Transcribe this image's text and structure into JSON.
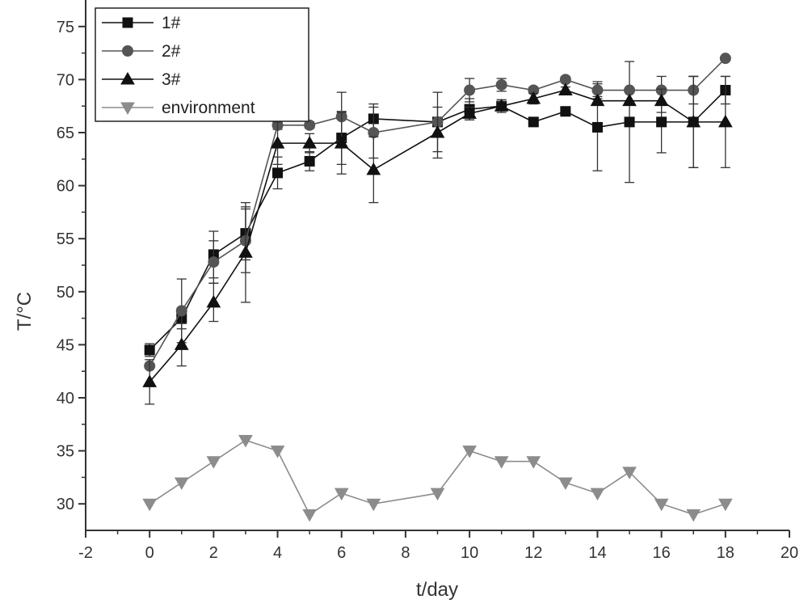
{
  "chart_data": {
    "type": "line",
    "title": "",
    "xlabel": "t/day",
    "ylabel": "T/°C",
    "xlim": [
      -2,
      20
    ],
    "ylim": [
      27.5,
      77.5
    ],
    "xticks": [
      -2,
      0,
      2,
      4,
      6,
      8,
      10,
      12,
      14,
      16,
      18,
      20
    ],
    "yticks": [
      30,
      35,
      40,
      45,
      50,
      55,
      60,
      65,
      70,
      75
    ],
    "grid": false,
    "legend_position": "top-left",
    "series": [
      {
        "name": "1#",
        "marker": "square",
        "color": "#111111",
        "x": [
          0,
          1,
          2,
          3,
          4,
          5,
          6,
          7,
          9,
          10,
          11,
          12,
          13,
          14,
          15,
          16,
          17,
          18
        ],
        "y": [
          44.5,
          47.5,
          53.5,
          55.5,
          61.2,
          62.3,
          64.5,
          66.3,
          66,
          67.2,
          67.5,
          66,
          67,
          65.5,
          66,
          66,
          66,
          69
        ],
        "err": [
          0.6,
          1.0,
          2.2,
          2.5,
          1.5,
          0.9,
          2.5,
          1.4,
          2.8,
          1.0,
          0.6,
          0,
          0,
          4.1,
          5.7,
          2.9,
          4.3,
          1.3
        ]
      },
      {
        "name": "2#",
        "marker": "circle",
        "color": "#555555",
        "x": [
          0,
          1,
          2,
          3,
          4,
          5,
          6,
          7,
          9,
          10,
          11,
          12,
          13,
          14,
          15,
          16,
          17,
          18
        ],
        "y": [
          43,
          48.2,
          52.8,
          54.8,
          65.7,
          65.7,
          66.5,
          65,
          66,
          69,
          69.5,
          69,
          70,
          69,
          69,
          69,
          69,
          72
        ],
        "err": [
          0,
          3.0,
          2.0,
          3.0,
          0.4,
          0.3,
          2.3,
          2.4,
          0,
          1.1,
          0.6,
          0.3,
          0.3,
          0.8,
          0,
          1.3,
          1.3,
          0
        ]
      },
      {
        "name": "3#",
        "marker": "triangle-up",
        "color": "#111111",
        "x": [
          0,
          1,
          2,
          3,
          4,
          5,
          6,
          7,
          9,
          10,
          11,
          12,
          13,
          14,
          15,
          16,
          17,
          18
        ],
        "y": [
          41.5,
          45,
          49,
          53.7,
          64,
          64,
          64,
          61.5,
          65,
          66.8,
          67.5,
          68.2,
          69,
          68,
          68,
          68,
          66,
          66
        ],
        "err": [
          2.1,
          2.0,
          1.8,
          4.7,
          2.0,
          0.9,
          2.9,
          3.1,
          2.4,
          0.6,
          0.4,
          0.5,
          0.3,
          0.4,
          0,
          1.1,
          4.3,
          4.3
        ]
      },
      {
        "name": "environment",
        "marker": "triangle-down",
        "color": "#8c8c8c",
        "x": [
          0,
          1,
          2,
          3,
          4,
          5,
          6,
          7,
          9,
          10,
          11,
          12,
          13,
          14,
          15,
          16,
          17,
          18
        ],
        "y": [
          30,
          32,
          34,
          36,
          35,
          29,
          31,
          30,
          31,
          35,
          34,
          34,
          32,
          31,
          33,
          30,
          29,
          30
        ],
        "err": []
      }
    ]
  }
}
